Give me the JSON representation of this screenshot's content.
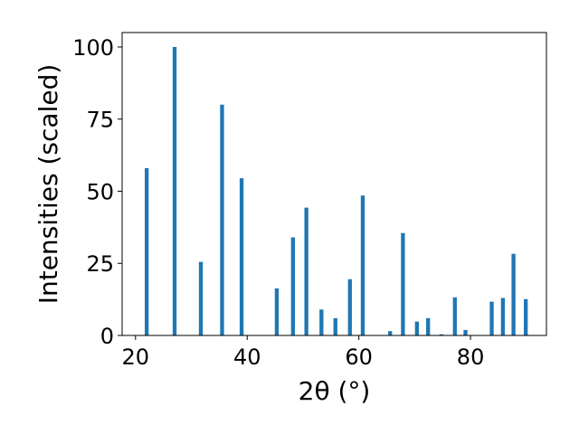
{
  "chart_data": {
    "type": "bar",
    "title": "",
    "xlabel": "2θ (°)",
    "ylabel": "Intensities (scaled)",
    "xlim": [
      17.6,
      93.6
    ],
    "ylim": [
      0,
      105
    ],
    "xticks": [
      20,
      40,
      60,
      80
    ],
    "yticks": [
      0,
      25,
      50,
      75,
      100
    ],
    "grid": false,
    "bar_color": "#1f77b4",
    "bar_width": 0.7,
    "x": [
      22.0,
      27.0,
      31.7,
      35.5,
      39.0,
      45.3,
      48.2,
      50.6,
      53.3,
      55.8,
      58.4,
      60.7,
      65.6,
      67.9,
      70.4,
      72.4,
      74.8,
      77.2,
      79.1,
      83.8,
      85.8,
      87.7,
      89.9
    ],
    "values": [
      58,
      100,
      25.5,
      80,
      54.5,
      16.3,
      34,
      44.3,
      9,
      6,
      19.5,
      48.5,
      1.5,
      35.5,
      4.8,
      6,
      0.4,
      13.2,
      1.9,
      11.7,
      13,
      28.3,
      12.6
    ]
  }
}
